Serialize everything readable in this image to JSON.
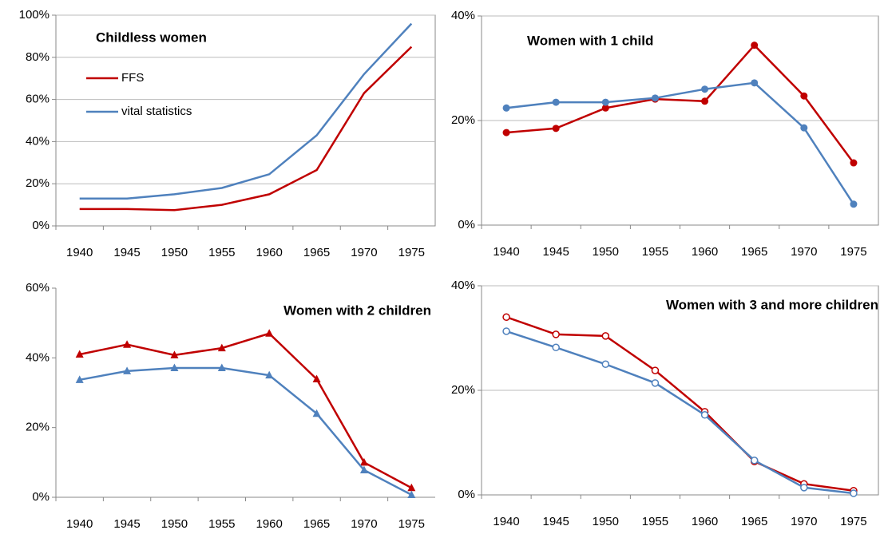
{
  "chart_data": [
    {
      "type": "line",
      "title": "Childless women",
      "categories": [
        "1940",
        "1945",
        "1950",
        "1955",
        "1960",
        "1965",
        "1970",
        "1975"
      ],
      "series": [
        {
          "name": "FFS",
          "color": "#c00000",
          "marker": "none",
          "values": [
            8,
            8,
            7.5,
            10,
            15,
            26.5,
            63,
            85
          ]
        },
        {
          "name": "vital statistics",
          "color": "#4f81bd",
          "marker": "none",
          "values": [
            13,
            13,
            15,
            18,
            24.5,
            43,
            72,
            96
          ]
        }
      ],
      "ylim": [
        0,
        100
      ],
      "yticks": [
        {
          "value": 0,
          "label": "0%"
        },
        {
          "value": 20,
          "label": "20%"
        },
        {
          "value": 40,
          "label": "40%"
        },
        {
          "value": 60,
          "label": "60%"
        },
        {
          "value": 80,
          "label": "80%"
        },
        {
          "value": 100,
          "label": "100%"
        }
      ],
      "grid": true,
      "legend": "upper left"
    },
    {
      "type": "line",
      "title": "Women with 1 child",
      "categories": [
        "1940",
        "1945",
        "1950",
        "1955",
        "1960",
        "1965",
        "1970",
        "1975"
      ],
      "series": [
        {
          "color": "#c00000",
          "marker": "circle",
          "values": [
            17.7,
            18.5,
            22.4,
            24.1,
            23.7,
            34.4,
            24.7,
            11.9
          ]
        },
        {
          "color": "#4f81bd",
          "marker": "circle",
          "values": [
            22.4,
            23.5,
            23.5,
            24.3,
            26,
            27.2,
            18.6,
            4
          ]
        }
      ],
      "ylim": [
        0,
        40
      ],
      "yticks": [
        {
          "value": 0,
          "label": "0%"
        },
        {
          "value": 20,
          "label": "20%"
        },
        {
          "value": 40,
          "label": "40%"
        }
      ],
      "grid": true
    },
    {
      "type": "line",
      "title": "Women with 2 children",
      "categories": [
        "1940",
        "1945",
        "1950",
        "1955",
        "1960",
        "1965",
        "1970",
        "1975"
      ],
      "series": [
        {
          "color": "#c00000",
          "marker": "triangle",
          "values": [
            41,
            43.8,
            40.8,
            42.8,
            47,
            33.9,
            10,
            2.7
          ]
        },
        {
          "color": "#4f81bd",
          "marker": "triangle",
          "values": [
            33.7,
            36.2,
            37.1,
            37.1,
            35,
            24,
            7.8,
            0.7
          ]
        }
      ],
      "ylim": [
        0,
        60
      ],
      "yticks": [
        {
          "value": 0,
          "label": "0%"
        },
        {
          "value": 20,
          "label": "20%"
        },
        {
          "value": 40,
          "label": "40%"
        },
        {
          "value": 60,
          "label": "60%"
        }
      ],
      "grid": false
    },
    {
      "type": "line",
      "title": "Women with 3 and more children",
      "categories": [
        "1940",
        "1945",
        "1950",
        "1955",
        "1960",
        "1965",
        "1970",
        "1975"
      ],
      "series": [
        {
          "color": "#c00000",
          "marker": "open-circle",
          "values": [
            34,
            30.7,
            30.4,
            23.8,
            15.9,
            6.4,
            2.1,
            0.8
          ]
        },
        {
          "color": "#4f81bd",
          "marker": "open-circle",
          "values": [
            31.3,
            28.2,
            25,
            21.4,
            15.3,
            6.6,
            1.4,
            0.3
          ]
        }
      ],
      "ylim": [
        0,
        40
      ],
      "yticks": [
        {
          "value": 0,
          "label": "0%"
        },
        {
          "value": 20,
          "label": "20%"
        },
        {
          "value": 40,
          "label": "40%"
        }
      ],
      "grid": true
    }
  ]
}
